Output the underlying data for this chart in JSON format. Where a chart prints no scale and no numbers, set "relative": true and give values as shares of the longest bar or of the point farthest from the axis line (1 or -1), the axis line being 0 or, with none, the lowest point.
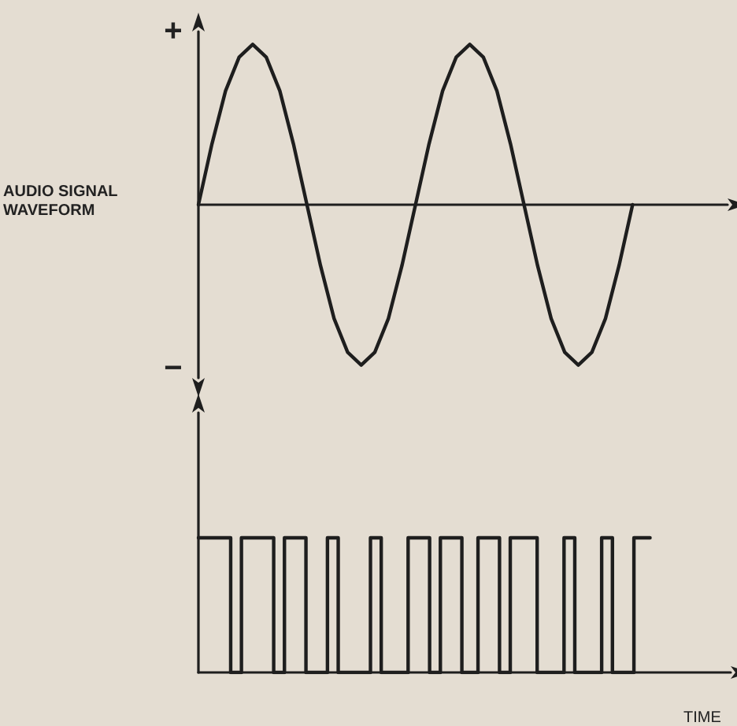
{
  "chart_data": [
    {
      "type": "line",
      "relative": true,
      "ylabel": "AUDIO SIGNAL WAVEFORM",
      "annotations": [
        "+",
        "−"
      ],
      "categories": [
        null,
        null,
        null,
        null,
        null,
        null,
        null,
        null,
        null,
        null,
        null,
        null,
        null,
        null,
        null,
        null,
        null,
        null,
        null,
        null,
        null,
        null,
        null,
        null,
        null,
        null,
        null,
        null,
        null,
        null,
        null,
        null,
        null,
        null,
        null,
        null,
        null,
        null,
        null,
        null
      ],
      "series": [
        {
          "color": "#1e1e1e",
          "values": [
            0,
            0.38,
            0.71,
            0.92,
            1,
            0.92,
            0.71,
            0.38,
            0,
            -0.38,
            -0.71,
            -0.92,
            -1,
            -0.92,
            -0.71,
            -0.38,
            0,
            0.38,
            0.71,
            0.92,
            1,
            0.92,
            0.71,
            0.38,
            0,
            -0.38,
            -0.71,
            -0.92,
            -1,
            -0.92,
            -0.71,
            -0.38,
            0,
            null,
            null,
            null,
            null,
            null,
            null,
            null
          ]
        }
      ]
    },
    {
      "type": "step",
      "relative": true,
      "xlabel": "TIME",
      "categories": [
        null,
        null,
        null,
        null,
        null,
        null,
        null,
        null,
        null,
        null,
        null,
        null,
        null,
        null,
        null,
        null,
        null,
        null,
        null,
        null,
        null,
        null,
        null,
        null,
        null,
        null,
        null,
        null,
        null,
        null,
        null,
        null,
        null,
        null,
        null,
        null,
        null,
        null,
        null,
        null,
        null,
        null,
        null,
        null,
        null,
        null,
        null,
        null,
        null,
        null,
        null,
        null,
        null,
        null,
        null,
        null,
        null,
        null,
        null,
        null,
        null,
        null,
        null,
        null,
        null,
        null,
        null,
        null,
        null,
        null,
        null,
        null,
        null,
        null,
        null,
        null,
        null,
        null,
        null,
        null,
        null,
        null,
        null,
        null,
        null,
        null,
        null,
        null,
        null,
        null,
        null,
        null,
        null,
        null,
        null,
        null,
        null,
        null,
        null,
        null
      ],
      "series": [
        {
          "color": "#1e1e1e",
          "values": [
            1,
            1,
            1,
            1,
            1,
            1,
            0,
            0,
            1,
            1,
            1,
            1,
            1,
            1,
            0,
            0,
            1,
            1,
            1,
            1,
            0,
            0,
            0,
            0,
            1,
            1,
            0,
            0,
            0,
            0,
            0,
            0,
            1,
            1,
            0,
            0,
            0,
            0,
            0,
            1,
            1,
            1,
            1,
            0,
            0,
            1,
            1,
            1,
            1,
            0,
            0,
            0,
            1,
            1,
            1,
            1,
            0,
            0,
            1,
            1,
            1,
            1,
            1,
            0,
            0,
            0,
            0,
            0,
            1,
            1,
            0,
            0,
            0,
            0,
            0,
            1,
            1,
            0,
            0,
            0,
            0,
            1,
            1,
            1,
            null,
            null,
            null,
            null,
            null,
            null,
            null,
            null,
            null,
            null,
            null,
            null,
            null,
            null,
            null,
            null
          ]
        }
      ]
    }
  ]
}
